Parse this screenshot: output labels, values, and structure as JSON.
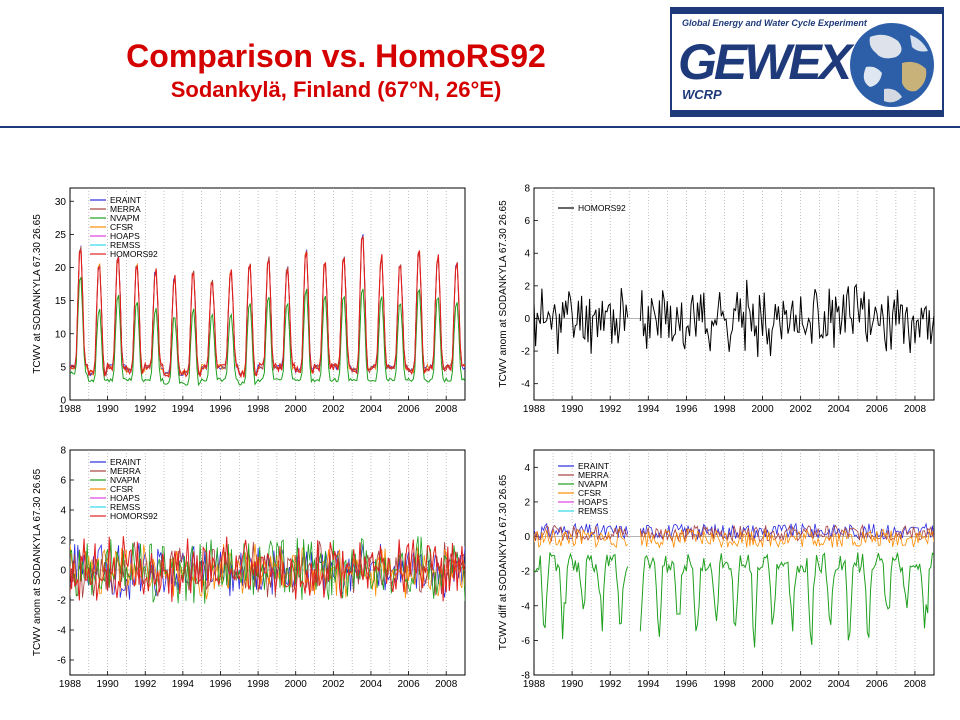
{
  "slide": {
    "title": "Comparison vs. HomoRS92",
    "subtitle": "Sodankylä, Finland (67°N, 26°E)",
    "title_color": "#d40000",
    "rule_color": "#1f3a7a"
  },
  "logo": {
    "top_text": "Global Energy and Water Cycle Experiment",
    "wordmark": "GEWEX",
    "org": "WCRP",
    "icon": "earth-globe-icon",
    "frame_color": "#1f3a7a",
    "wordmark_color": "#1f3a7a"
  },
  "series_colors": {
    "ERAINT": "#2a2ae0",
    "MERRA": "#a84040",
    "NVAPM": "#1fa01f",
    "CFSR": "#ff8c00",
    "HOAPS": "#e040e0",
    "REMSS": "#30d8e8",
    "HOMORS92": "#e02020",
    "HOMORS92_single": "#000000"
  },
  "chart_data": [
    {
      "type": "line",
      "ylabel": "TCWV at SODANKYLA  67.30  26.65",
      "x_range": [
        1988,
        2009
      ],
      "ylim": [
        0,
        32
      ],
      "x_ticks": [
        "1988",
        "1990",
        "1992",
        "1994",
        "1996",
        "1998",
        "2000",
        "2002",
        "2004",
        "2006",
        "2008"
      ],
      "y_ticks": [
        "0",
        "5",
        "10",
        "15",
        "20",
        "25",
        "30"
      ],
      "y_tick_values": [
        0,
        5,
        10,
        15,
        20,
        25,
        30
      ],
      "legend": [
        "ERAINT",
        "MERRA",
        "NVAPM",
        "CFSR",
        "HOAPS",
        "REMSS",
        "HOMORS92"
      ],
      "grid": "vertical dotted",
      "kind": "seasonal",
      "summer_peaks": [
        23.5,
        21,
        22,
        21,
        20,
        19,
        20,
        18.5,
        20,
        21,
        22,
        20.5,
        23,
        21,
        22,
        25.5,
        22,
        21,
        23,
        22,
        21
      ],
      "winter_min": [
        5,
        4,
        5,
        4.5,
        5,
        4,
        4,
        5,
        5,
        4,
        5,
        5,
        4.5,
        5,
        5,
        4.5,
        5,
        5,
        4.5,
        5,
        5
      ],
      "nvapm_summer_peaks": [
        19,
        14,
        16,
        15,
        14,
        13,
        14,
        13,
        13,
        15,
        16,
        15,
        17,
        16,
        16,
        17,
        16,
        15,
        17,
        16,
        15
      ],
      "nvapm_winter_min": [
        4,
        3,
        3,
        3,
        3,
        2.5,
        2.5,
        3,
        3,
        2.5,
        3,
        3,
        3,
        3,
        3,
        3,
        3,
        3,
        3,
        3,
        3
      ]
    },
    {
      "type": "line",
      "ylabel": "TCWV anom at SODANKYLA  67.30  26.65",
      "x_range": [
        1988,
        2009
      ],
      "ylim": [
        -5,
        8
      ],
      "x_ticks": [
        "1988",
        "1990",
        "1992",
        "1994",
        "1996",
        "1998",
        "2000",
        "2002",
        "2004",
        "2006",
        "2008"
      ],
      "y_ticks": [
        "-4",
        "-2",
        "0",
        "2",
        "4",
        "6",
        "8"
      ],
      "y_tick_values": [
        -4,
        -2,
        0,
        2,
        4,
        6,
        8
      ],
      "legend": [
        "HOMORS92"
      ],
      "grid": "vertical dotted",
      "kind": "anomaly",
      "series": [
        {
          "name": "HOMORS92",
          "amp": 1.6,
          "seed": 11,
          "gaps": [
            [
              1993.0,
              1993.5
            ]
          ],
          "color_key": "HOMORS92_single"
        }
      ]
    },
    {
      "type": "line",
      "ylabel": "TCWV anom at SODANKYLA  67.30  26.65",
      "x_range": [
        1988,
        2009
      ],
      "ylim": [
        -7,
        8
      ],
      "x_ticks": [
        "1988",
        "1990",
        "1992",
        "1994",
        "1996",
        "1998",
        "2000",
        "2002",
        "2004",
        "2006",
        "2008"
      ],
      "y_ticks": [
        "-6",
        "-4",
        "-2",
        "0",
        "2",
        "4",
        "6",
        "8"
      ],
      "y_tick_values": [
        -6,
        -4,
        -2,
        0,
        2,
        4,
        6,
        8
      ],
      "legend": [
        "ERAINT",
        "MERRA",
        "NVAPM",
        "CFSR",
        "HOAPS",
        "REMSS",
        "HOMORS92"
      ],
      "grid": "vertical dotted",
      "kind": "anomaly",
      "series": [
        {
          "name": "ERAINT",
          "amp": 1.4,
          "seed": 21,
          "color_key": "ERAINT"
        },
        {
          "name": "MERRA",
          "amp": 1.4,
          "seed": 22,
          "color_key": "MERRA"
        },
        {
          "name": "CFSR",
          "amp": 1.4,
          "seed": 23,
          "color_key": "CFSR"
        },
        {
          "name": "NVAPM",
          "amp": 1.6,
          "seed": 24,
          "color_key": "NVAPM"
        },
        {
          "name": "HOMORS92",
          "amp": 1.6,
          "seed": 25,
          "color_key": "HOMORS92"
        }
      ]
    },
    {
      "type": "line",
      "ylabel": "TCWV diff at SODANKYLA  67.30  26.65",
      "x_range": [
        1988,
        2009
      ],
      "ylim": [
        -8,
        5
      ],
      "x_ticks": [
        "1988",
        "1990",
        "1992",
        "1994",
        "1996",
        "1998",
        "2000",
        "2002",
        "2004",
        "2006",
        "2008"
      ],
      "y_ticks": [
        "-8",
        "-6",
        "-4",
        "-2",
        "0",
        "2",
        "4"
      ],
      "y_tick_values": [
        -8,
        -6,
        -4,
        -2,
        0,
        2,
        4
      ],
      "legend": [
        "ERAINT",
        "MERRA",
        "NVAPM",
        "CFSR",
        "HOAPS",
        "REMSS"
      ],
      "grid": "vertical dotted",
      "kind": "diff",
      "gaps": [
        [
          1993.0,
          1993.5
        ]
      ],
      "series": [
        {
          "name": "ERAINT",
          "base": 0.3,
          "amp": 0.45,
          "seed": 31,
          "color_key": "ERAINT"
        },
        {
          "name": "MERRA",
          "base": 0.2,
          "amp": 0.45,
          "seed": 32,
          "color_key": "MERRA"
        },
        {
          "name": "CFSR",
          "base": -0.1,
          "amp": 0.55,
          "seed": 33,
          "color_key": "CFSR"
        },
        {
          "name": "NVAPM",
          "base": -1.5,
          "amp": 0.6,
          "seed": 34,
          "seasonal": 3.6,
          "color_key": "NVAPM"
        }
      ]
    }
  ]
}
